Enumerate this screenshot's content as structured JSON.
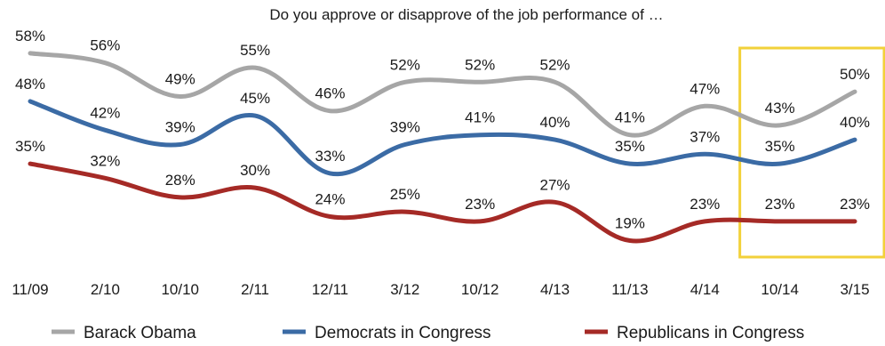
{
  "chart_data": {
    "type": "line",
    "title": "Do you approve or disapprove of the job performance of …",
    "xlabel": "",
    "ylabel": "",
    "categories": [
      "11/09",
      "2/10",
      "10/10",
      "2/11",
      "12/11",
      "3/12",
      "10/12",
      "4/13",
      "11/13",
      "4/14",
      "10/14",
      "3/15"
    ],
    "series": [
      {
        "name": "Barack Obama",
        "color": "#a6a6a6",
        "values": [
          58,
          56,
          49,
          55,
          46,
          52,
          52,
          52,
          41,
          47,
          43,
          50
        ],
        "labels": [
          "58%",
          "56%",
          "49%",
          "55%",
          "46%",
          "52%",
          "52%",
          "52%",
          "41%",
          "47%",
          "43%",
          "50%"
        ]
      },
      {
        "name": "Democrats in Congress",
        "color": "#3b6ba5",
        "values": [
          48,
          42,
          39,
          45,
          33,
          39,
          41,
          40,
          35,
          37,
          35,
          40
        ],
        "labels": [
          "48%",
          "42%",
          "39%",
          "45%",
          "33%",
          "39%",
          "41%",
          "40%",
          "35%",
          "37%",
          "35%",
          "40%"
        ]
      },
      {
        "name": "Republicans in Congress",
        "color": "#a52a26",
        "values": [
          35,
          32,
          28,
          30,
          24,
          25,
          23,
          27,
          19,
          23,
          23,
          23
        ],
        "labels": [
          "35%",
          "32%",
          "28%",
          "30%",
          "24%",
          "25%",
          "23%",
          "27%",
          "19%",
          "23%",
          "23%",
          "23%"
        ]
      }
    ],
    "highlight": {
      "from": "10/14",
      "to": "3/15",
      "color": "#f2d13a"
    },
    "grid": false,
    "legend_position": "bottom"
  }
}
